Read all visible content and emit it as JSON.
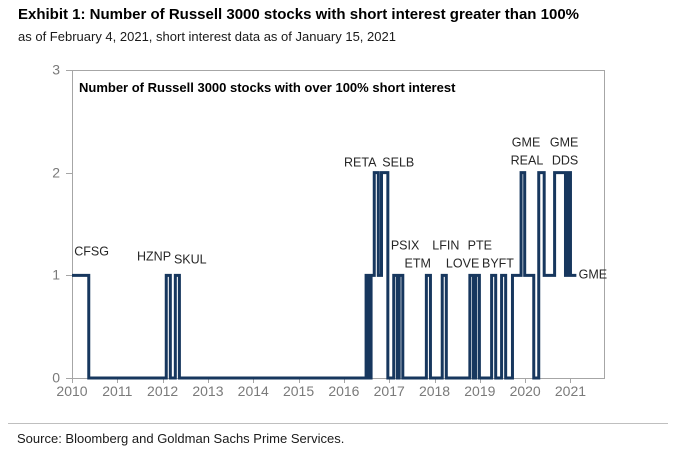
{
  "header": {
    "title": "Exhibit 1: Number of Russell 3000 stocks with short interest greater than 100%",
    "subtitle": "as of February 4, 2021, short interest data as of January 15, 2021"
  },
  "footer": {
    "source": "Source: Bloomberg and Goldman Sachs Prime Services."
  },
  "chart_data": {
    "type": "line",
    "style": "step",
    "title": "Number of Russell 3000 stocks with over 100% short interest",
    "xlabel": "",
    "ylabel": "",
    "grid": false,
    "legend": null,
    "xlim": [
      2010,
      2021.74
    ],
    "ylim": [
      0,
      3
    ],
    "x_ticks": [
      2010,
      2011,
      2012,
      2013,
      2014,
      2015,
      2016,
      2017,
      2018,
      2019,
      2020,
      2021
    ],
    "y_ticks": [
      0,
      1,
      2,
      3
    ],
    "line_color": "#17375e",
    "axis_color": "#a6a6a6",
    "tick_label_color": "#7a7a7a",
    "end_x": 2021.13,
    "steps": [
      [
        2010.0,
        1
      ],
      [
        2010.37,
        0
      ],
      [
        2012.08,
        1
      ],
      [
        2012.17,
        0
      ],
      [
        2012.28,
        1
      ],
      [
        2012.37,
        0
      ],
      [
        2016.49,
        1
      ],
      [
        2016.54,
        0
      ],
      [
        2016.6,
        1
      ],
      [
        2016.67,
        2
      ],
      [
        2016.76,
        1
      ],
      [
        2016.83,
        2
      ],
      [
        2016.97,
        0
      ],
      [
        2017.1,
        1
      ],
      [
        2017.18,
        0
      ],
      [
        2017.22,
        1
      ],
      [
        2017.3,
        0
      ],
      [
        2017.82,
        1
      ],
      [
        2017.91,
        0
      ],
      [
        2018.17,
        1
      ],
      [
        2018.26,
        0
      ],
      [
        2018.78,
        1
      ],
      [
        2018.86,
        0
      ],
      [
        2018.91,
        1
      ],
      [
        2018.99,
        0
      ],
      [
        2019.26,
        1
      ],
      [
        2019.35,
        0
      ],
      [
        2019.48,
        1
      ],
      [
        2019.57,
        0
      ],
      [
        2019.72,
        1
      ],
      [
        2019.91,
        2
      ],
      [
        2019.99,
        1
      ],
      [
        2020.19,
        0
      ],
      [
        2020.3,
        2
      ],
      [
        2020.42,
        1
      ],
      [
        2020.65,
        2
      ],
      [
        2020.89,
        1
      ],
      [
        2020.94,
        2
      ],
      [
        2021.0,
        1
      ]
    ],
    "annotations": [
      {
        "text": "CFSG",
        "x": 2010.05,
        "y": 1.17,
        "align": "left"
      },
      {
        "text": "HZNP",
        "x": 2011.81,
        "y": 1.12,
        "align": "center"
      },
      {
        "text": "SKUL",
        "x": 2012.61,
        "y": 1.09,
        "align": "center"
      },
      {
        "text": "RETA",
        "x": 2016.36,
        "y": 2.04,
        "align": "center"
      },
      {
        "text": "SELB",
        "x": 2017.2,
        "y": 2.04,
        "align": "center"
      },
      {
        "text": "PSIX",
        "x": 2017.35,
        "y": 1.23,
        "align": "center"
      },
      {
        "text": "ETM",
        "x": 2017.63,
        "y": 1.05,
        "align": "center"
      },
      {
        "text": "LFIN",
        "x": 2018.25,
        "y": 1.23,
        "align": "center"
      },
      {
        "text": "LOVE",
        "x": 2018.62,
        "y": 1.05,
        "align": "center"
      },
      {
        "text": "PTE",
        "x": 2019.0,
        "y": 1.23,
        "align": "center"
      },
      {
        "text": "BYFT",
        "x": 2019.4,
        "y": 1.05,
        "align": "center"
      },
      {
        "text": "GME",
        "x": 2020.02,
        "y": 2.23,
        "align": "center"
      },
      {
        "text": "REAL",
        "x": 2020.04,
        "y": 2.06,
        "align": "center"
      },
      {
        "text": "GME",
        "x": 2020.86,
        "y": 2.23,
        "align": "center"
      },
      {
        "text": "DDS",
        "x": 2020.88,
        "y": 2.06,
        "align": "center"
      },
      {
        "text": "GME",
        "x": 2021.18,
        "y": 0.94,
        "align": "left"
      }
    ]
  }
}
